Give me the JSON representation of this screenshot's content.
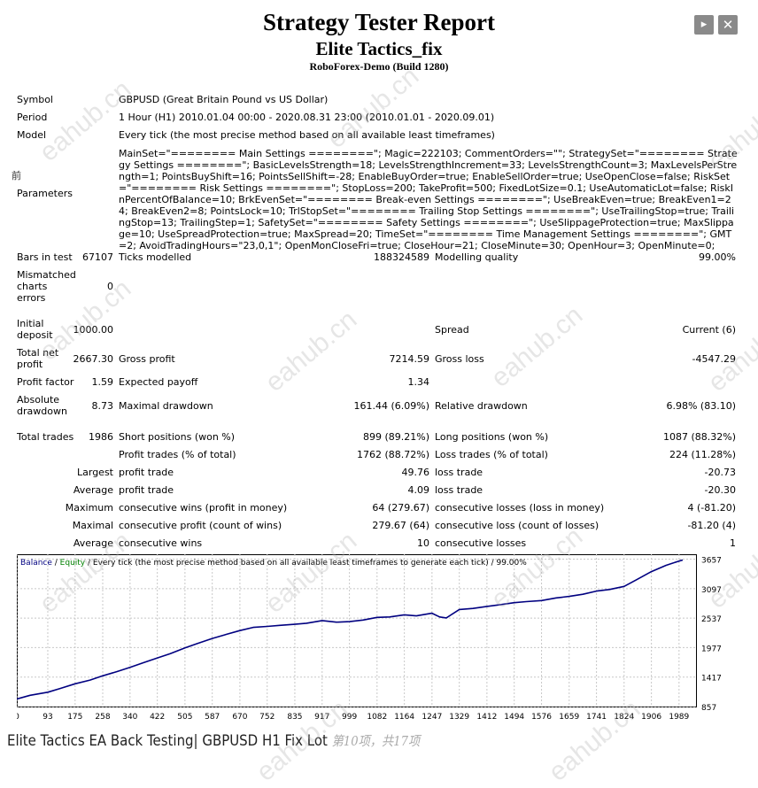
{
  "header": {
    "title": "Strategy Tester Report",
    "subtitle": "Elite Tactics_fix",
    "server": "RoboForex-Demo (Build 1280)"
  },
  "window": {
    "next_icon": "play-icon",
    "close_icon": "close-icon",
    "next_glyph": "▸",
    "close_glyph": "✕"
  },
  "side_mark": "前",
  "info": {
    "symbol_label": "Symbol",
    "symbol_value": "GBPUSD (Great Britain Pound vs US Dollar)",
    "period_label": "Period",
    "period_value": "1 Hour (H1) 2010.01.04 00:00 - 2020.08.31 23:00 (2010.01.01 - 2020.09.01)",
    "model_label": "Model",
    "model_value": "Every tick (the most precise method based on all available least timeframes)",
    "parameters_label": "Parameters",
    "parameters_value": "MainSet=\"======== Main Settings ========\"; Magic=222103; CommentOrders=\"\"; StrategySet=\"======== Strategy Settings ========\"; BasicLevelsStrength=18; LevelsStrengthIncrement=33; LevelsStrengthCount=3; MaxLevelsPerStrength=1; PointsBuyShift=16; PointsSellShift=-28; EnableBuyOrder=true; EnableSellOrder=true; UseOpenClose=false; RiskSet=\"======== Risk Settings ========\"; StopLoss=200; TakeProfit=500; FixedLotSize=0.1; UseAutomaticLot=false; RiskInPercentOfBalance=10; BrkEvenSet=\"======== Break-even Settings ========\"; UseBreakEven=true; BreakEven1=24; BreakEven2=8; PointsLock=10; TrlStopSet=\"======== Trailing Stop Settings ========\"; UseTrailingStop=true; TrailingStop=13; TrailingStep=1; SafetySet=\"======== Safety Settings ========\"; UseSlippageProtection=true; MaxSlippage=10; UseSpreadProtection=true; MaxSpread=20; TimeSet=\"======== Time Management Settings ========\"; GMT=2; AvoidTradingHours=\"23,0,1\"; OpenMonCloseFri=true; CloseHour=21; CloseMinute=30; OpenHour=3; OpenMinute=0;"
  },
  "stats": {
    "bars_label": "Bars in test",
    "bars_value": "67107",
    "ticks_label": "Ticks modelled",
    "ticks_value": "188324589",
    "quality_label": "Modelling quality",
    "quality_value": "99.00%",
    "mismatched_label_1": "Mismatched",
    "mismatched_label_2": "charts",
    "mismatched_label_3": "errors",
    "mismatched_value": "0",
    "initial_label_1": "Initial",
    "initial_label_2": "deposit",
    "initial_value": "1000.00",
    "spread_label": "Spread",
    "spread_value": "Current (6)",
    "netprofit_label_1": "Total net",
    "netprofit_label_2": "profit",
    "netprofit_value": "2667.30",
    "grossprofit_label": "Gross profit",
    "grossprofit_value": "7214.59",
    "grossloss_label": "Gross loss",
    "grossloss_value": "-4547.29",
    "pf_label": "Profit factor",
    "pf_value": "1.59",
    "payoff_label": "Expected payoff",
    "payoff_value": "1.34",
    "absdd_label_1": "Absolute",
    "absdd_label_2": "drawdown",
    "absdd_value": "8.73",
    "maxdd_label": "Maximal drawdown",
    "maxdd_value": "161.44 (6.09%)",
    "reldd_label": "Relative drawdown",
    "reldd_value": "6.98% (83.10)",
    "trades_label": "Total trades",
    "trades_value": "1986",
    "short_label": "Short positions (won %)",
    "short_value": "899 (89.21%)",
    "long_label": "Long positions (won %)",
    "long_value": "1087 (88.32%)",
    "ptrades_label": "Profit trades (% of total)",
    "ptrades_value": "1762 (88.72%)",
    "ltrades_label": "Loss trades (% of total)",
    "ltrades_value": "224 (11.28%)",
    "largest_label": "Largest",
    "largest_profit_label": "profit trade",
    "largest_profit_value": "49.76",
    "largest_loss_label": "loss trade",
    "largest_loss_value": "-20.73",
    "average_label": "Average",
    "average_profit_label": "profit trade",
    "average_profit_value": "4.09",
    "average_loss_label": "loss trade",
    "average_loss_value": "-20.30",
    "maximum_label": "Maximum",
    "max_wins_label": "consecutive wins (profit in money)",
    "max_wins_value": "64 (279.67)",
    "max_losses_label": "consecutive losses (loss in money)",
    "max_losses_value": "4 (-81.20)",
    "maximal_label": "Maximal",
    "maximal_profit_label": "consecutive profit (count of wins)",
    "maximal_profit_value": "279.67 (64)",
    "maximal_loss_label": "consecutive loss (count of losses)",
    "maximal_loss_value": "-81.20 (4)",
    "average2_label": "Average",
    "avg_wins_label": "consecutive wins",
    "avg_wins_value": "10",
    "avg_losses_label": "consecutive losses",
    "avg_losses_value": "1"
  },
  "chart_data": {
    "type": "line",
    "legend": {
      "balance": "Balance",
      "sep1": " / ",
      "equity": "Equity",
      "rest": " / Every tick (the most precise method based on all available least timeframes to generate each tick) / 99.00%"
    },
    "xlim": [
      0,
      2040
    ],
    "ylim": [
      857,
      3750
    ],
    "x_ticks": [
      0,
      93,
      175,
      258,
      340,
      422,
      505,
      587,
      670,
      752,
      835,
      917,
      999,
      1082,
      1164,
      1247,
      1329,
      1412,
      1494,
      1576,
      1659,
      1741,
      1824,
      1906,
      1989
    ],
    "y_ticks": [
      3657,
      3097,
      2537,
      1977,
      1417,
      857
    ],
    "colors": {
      "balance": "#000080",
      "equity": "#008000",
      "grid": "#c8c8c8"
    },
    "series": [
      {
        "name": "Balance",
        "x": [
          0,
          40,
          93,
          130,
          175,
          220,
          258,
          300,
          340,
          380,
          422,
          460,
          505,
          540,
          587,
          630,
          670,
          710,
          752,
          790,
          835,
          870,
          917,
          960,
          999,
          1040,
          1082,
          1120,
          1164,
          1200,
          1247,
          1270,
          1290,
          1329,
          1370,
          1412,
          1450,
          1494,
          1530,
          1576,
          1620,
          1659,
          1700,
          1741,
          1780,
          1824,
          1860,
          1906,
          1950,
          1989,
          2000
        ],
        "values": [
          1000,
          1070,
          1130,
          1200,
          1290,
          1360,
          1440,
          1520,
          1600,
          1690,
          1780,
          1860,
          1970,
          2050,
          2150,
          2230,
          2300,
          2360,
          2380,
          2400,
          2420,
          2440,
          2490,
          2460,
          2470,
          2500,
          2550,
          2560,
          2600,
          2580,
          2630,
          2560,
          2540,
          2700,
          2720,
          2760,
          2790,
          2830,
          2850,
          2870,
          2920,
          2950,
          2990,
          3050,
          3080,
          3140,
          3260,
          3420,
          3540,
          3620,
          3640
        ]
      }
    ]
  },
  "caption": {
    "text": "Elite Tactics EA Back Testing| GBPUSD H1 Fix Lot ",
    "page": "第10项，共17项"
  },
  "watermark_text": "eahub.cn"
}
